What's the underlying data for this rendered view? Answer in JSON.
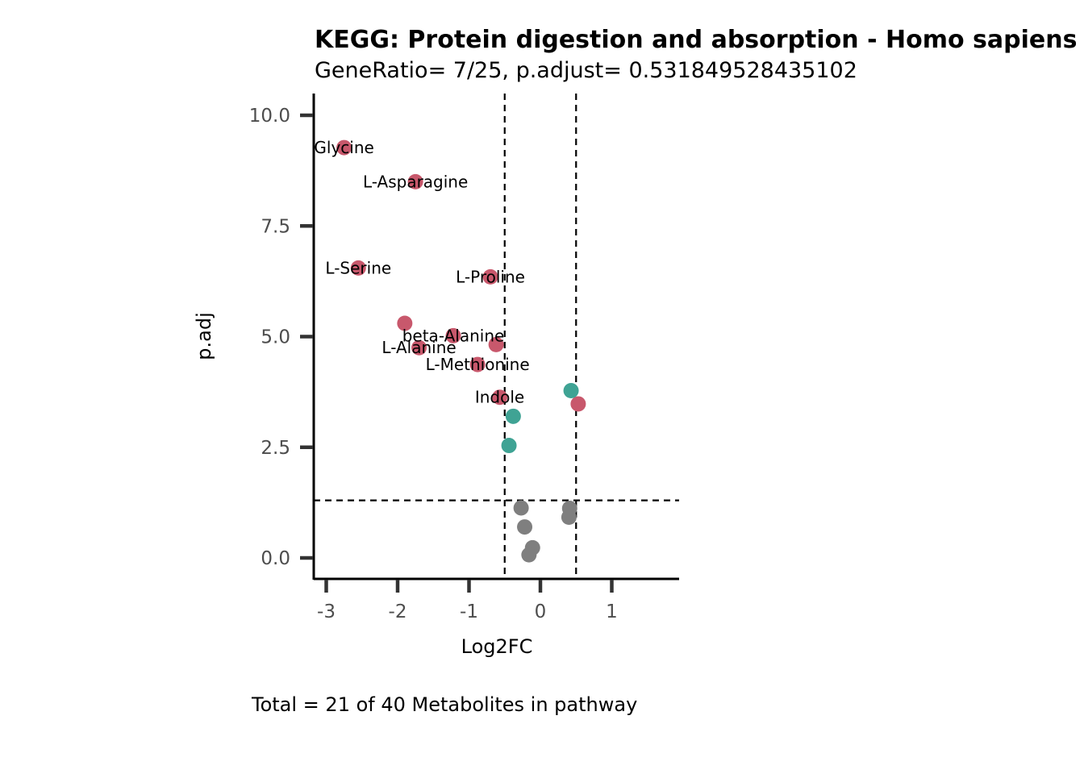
{
  "chart_data": {
    "type": "scatter",
    "title": "KEGG: Protein digestion and absorption - Homo sapiens",
    "subtitle": "GeneRatio= 7/25, p.adjust= 0.531849528435102",
    "caption": "Total = 21 of 40 Metabolites in pathway",
    "xlabel": "Log2FC",
    "ylabel": "p.adj",
    "xlim": [
      -3.2,
      1.95
    ],
    "ylim": [
      -0.5,
      10.5
    ],
    "x_ticks": [
      -3,
      -2,
      -1,
      0,
      1
    ],
    "x_tick_labels": [
      "-3",
      "-2",
      "-1",
      "0",
      "1"
    ],
    "y_ticks": [
      0,
      2.5,
      5,
      7.5,
      10
    ],
    "y_tick_labels": [
      "0.0",
      "2.5",
      "5.0",
      "7.5",
      "10.0"
    ],
    "thresholds": {
      "vertical_x": [
        -0.5,
        0.5
      ],
      "horizontal_y": 1.3
    },
    "grid": false,
    "legend": "none",
    "colors": {
      "in_pathway": "#c8586c",
      "significant_other": "#3fa394",
      "not_significant": "#7f7f7f"
    },
    "points": [
      {
        "x": -2.75,
        "y": 9.27,
        "group": "in_pathway",
        "label": "Glycine"
      },
      {
        "x": -1.75,
        "y": 8.5,
        "group": "in_pathway",
        "label": "L-Asparagine"
      },
      {
        "x": -2.55,
        "y": 6.55,
        "group": "in_pathway",
        "label": "L-Serine"
      },
      {
        "x": -0.7,
        "y": 6.35,
        "group": "in_pathway",
        "label": "L-Proline"
      },
      {
        "x": -1.9,
        "y": 5.3,
        "group": "in_pathway",
        "label": ""
      },
      {
        "x": -1.22,
        "y": 5.02,
        "group": "in_pathway",
        "label": "beta-Alanine"
      },
      {
        "x": -0.62,
        "y": 4.82,
        "group": "in_pathway",
        "label": ""
      },
      {
        "x": -1.7,
        "y": 4.75,
        "group": "in_pathway",
        "label": "L-Alanine"
      },
      {
        "x": -0.88,
        "y": 4.37,
        "group": "in_pathway",
        "label": "L-Methionine"
      },
      {
        "x": -0.57,
        "y": 3.63,
        "group": "in_pathway",
        "label": "Indole"
      },
      {
        "x": 0.53,
        "y": 3.48,
        "group": "in_pathway",
        "label": ""
      },
      {
        "x": 0.43,
        "y": 3.78,
        "group": "significant_other",
        "label": ""
      },
      {
        "x": -0.38,
        "y": 3.2,
        "group": "significant_other",
        "label": ""
      },
      {
        "x": -0.44,
        "y": 2.54,
        "group": "significant_other",
        "label": ""
      },
      {
        "x": -0.27,
        "y": 1.13,
        "group": "not_significant",
        "label": ""
      },
      {
        "x": 0.41,
        "y": 1.12,
        "group": "not_significant",
        "label": ""
      },
      {
        "x": 0.4,
        "y": 0.92,
        "group": "not_significant",
        "label": ""
      },
      {
        "x": -0.22,
        "y": 0.7,
        "group": "not_significant",
        "label": ""
      },
      {
        "x": -0.11,
        "y": 0.23,
        "group": "not_significant",
        "label": ""
      },
      {
        "x": -0.16,
        "y": 0.07,
        "group": "not_significant",
        "label": ""
      }
    ]
  }
}
